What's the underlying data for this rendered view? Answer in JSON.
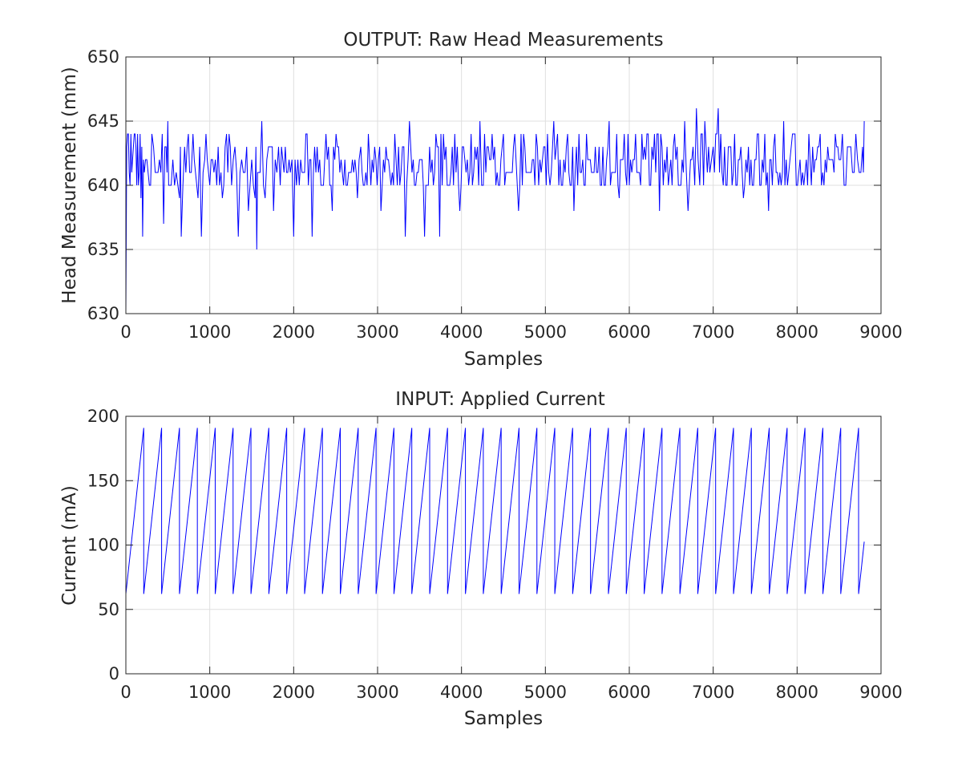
{
  "chart_data": [
    {
      "type": "line",
      "title": "OUTPUT: Raw Head Measurements",
      "xlabel": "Samples",
      "ylabel": "Head Measurement (mm)",
      "xlim": [
        0,
        9000
      ],
      "ylim": [
        630,
        650
      ],
      "xticks": [
        0,
        1000,
        2000,
        3000,
        4000,
        5000,
        6000,
        7000,
        8000,
        9000
      ],
      "yticks": [
        630,
        635,
        640,
        645,
        650
      ],
      "grid": true,
      "series": [
        {
          "color": "#0000ff",
          "x": [
            0,
            20,
            40,
            60,
            80,
            100,
            120,
            140,
            160,
            180,
            200,
            220,
            250,
            280,
            310,
            350,
            400,
            450,
            480,
            500,
            520,
            560,
            600,
            640,
            660,
            700,
            760,
            800,
            860,
            900,
            940,
            1000,
            1050,
            1100,
            1150,
            1200,
            1260,
            1300,
            1340,
            1380,
            1420,
            1460,
            1500,
            1540,
            1560,
            1580,
            1620,
            1660,
            1700,
            1760,
            1800,
            1840,
            1900,
            1960,
            2000,
            2050,
            2100,
            2160,
            2220,
            2280,
            2340,
            2400,
            2460,
            2520,
            2580,
            2640,
            2700,
            2760,
            2800,
            2860,
            2920,
            2980,
            3040,
            3100,
            3160,
            3220,
            3280,
            3330,
            3380,
            3440,
            3500,
            3560,
            3620,
            3680,
            3740,
            3800,
            3860,
            3920,
            3980,
            4040,
            4100,
            4160,
            4220,
            4260,
            4320,
            4380,
            4440,
            4500,
            4560,
            4620,
            4680,
            4740,
            4800,
            4860,
            4920,
            4980,
            5040,
            5100,
            5160,
            5220,
            5280,
            5340,
            5400,
            5460,
            5520,
            5580,
            5640,
            5700,
            5760,
            5820,
            5880,
            5940,
            6000,
            6060,
            6120,
            6180,
            6240,
            6300,
            6360,
            6420,
            6480,
            6540,
            6600,
            6660,
            6700,
            6760,
            6800,
            6840,
            6900,
            6960,
            7000,
            7060,
            7120,
            7180,
            7240,
            7300,
            7360,
            7420,
            7480,
            7540,
            7600,
            7660,
            7720,
            7780,
            7840,
            7900,
            7960,
            8020,
            8080,
            8140,
            8200,
            8260,
            8320,
            8380,
            8440,
            8500,
            8540,
            8580,
            8620,
            8660,
            8700,
            8740,
            8780,
            8800
          ],
          "y": [
            630,
            644,
            641,
            644,
            642,
            644,
            643,
            644,
            641,
            639,
            636,
            641,
            642,
            640,
            644,
            641,
            642,
            637,
            643,
            645,
            640,
            642,
            641,
            639,
            636,
            643,
            641,
            644,
            639,
            636,
            642,
            640,
            641,
            643,
            639,
            644,
            640,
            643,
            636,
            642,
            641,
            638,
            642,
            639,
            635,
            641,
            645,
            639,
            643,
            638,
            641,
            640,
            643,
            641,
            636,
            642,
            641,
            644,
            636,
            643,
            640,
            642,
            638,
            643,
            641,
            640,
            642,
            639,
            643,
            641,
            640,
            642,
            638,
            643,
            640,
            642,
            641,
            636,
            645,
            640,
            642,
            636,
            643,
            641,
            636,
            642,
            640,
            644,
            638,
            642,
            641,
            643,
            645,
            640,
            643,
            642,
            640,
            644,
            641,
            643,
            638,
            644,
            641,
            642,
            640,
            643,
            641,
            645,
            640,
            642,
            641,
            638,
            644,
            640,
            642,
            641,
            643,
            640,
            645,
            641,
            639,
            644,
            640,
            642,
            641,
            643,
            640,
            644,
            638,
            642,
            641,
            644,
            640,
            645,
            638,
            643,
            646,
            640,
            645,
            641,
            643,
            646,
            640,
            643,
            641,
            642,
            639,
            643,
            640,
            644,
            641,
            638,
            643,
            640,
            645,
            641,
            644,
            641,
            640,
            644,
            641,
            643,
            640,
            642,
            641,
            642,
            644,
            640,
            643,
            641,
            644,
            641,
            643,
            645
          ]
        }
      ]
    },
    {
      "type": "line",
      "title": "INPUT: Applied Current",
      "xlabel": "Samples",
      "ylabel": "Current (mA)",
      "xlim": [
        0,
        9000
      ],
      "ylim": [
        0,
        200
      ],
      "xticks": [
        0,
        1000,
        2000,
        3000,
        4000,
        5000,
        6000,
        7000,
        8000,
        9000
      ],
      "yticks": [
        0,
        50,
        100,
        150,
        200
      ],
      "grid": true,
      "series": [
        {
          "color": "#0000ff",
          "waveform": "sawtooth",
          "start": 0,
          "end": 8800,
          "period": 213,
          "min": 62,
          "max": 191
        }
      ]
    }
  ]
}
